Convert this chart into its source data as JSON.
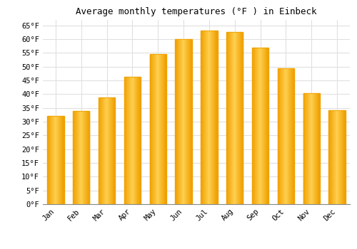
{
  "title": "Average monthly temperatures (°F ) in Einbeck",
  "months": [
    "Jan",
    "Feb",
    "Mar",
    "Apr",
    "May",
    "Jun",
    "Jul",
    "Aug",
    "Sep",
    "Oct",
    "Nov",
    "Dec"
  ],
  "values": [
    32.2,
    33.8,
    38.8,
    46.4,
    54.5,
    60.1,
    63.1,
    62.6,
    57.0,
    49.3,
    40.3,
    34.2
  ],
  "bar_color_center": "#FFD050",
  "bar_color_edge": "#F0A000",
  "background_color": "#FFFFFF",
  "plot_bg_color": "#FFFFFF",
  "grid_color": "#E0E0E0",
  "ylim": [
    0,
    67
  ],
  "yticks": [
    0,
    5,
    10,
    15,
    20,
    25,
    30,
    35,
    40,
    45,
    50,
    55,
    60,
    65
  ],
  "title_fontsize": 9,
  "tick_fontsize": 7.5,
  "font_family": "monospace",
  "bar_width": 0.65
}
